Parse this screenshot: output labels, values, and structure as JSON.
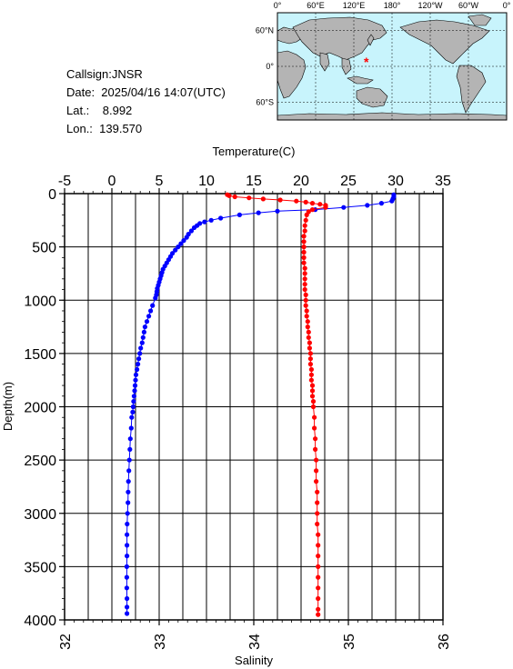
{
  "station": {
    "callsign_line": "Callsign:JNSR",
    "date_line": "Date:  2025/04/16 14:07(UTC)",
    "lat_line": "Lat.:    8.992",
    "lon_line": "Lon.:  139.570"
  },
  "map": {
    "top_labels": [
      "0°",
      "60°E",
      "120°E",
      "180°",
      "120°W",
      "60°W",
      "0°"
    ],
    "side_labels": [
      "60°N",
      "0°",
      "60°S"
    ],
    "ocean_color": "#c8f4fc",
    "land_color": "#b4b4b4",
    "marker_color": "#ff0000",
    "marker": {
      "lat": 8.992,
      "lon": 139.57
    }
  },
  "chart_data": {
    "type": "line",
    "ylabel": "Depth(m)",
    "y_ticks": [
      "0",
      "500",
      "1000",
      "1500",
      "2000",
      "2500",
      "3000",
      "3500",
      "4000"
    ],
    "ylim": [
      4000,
      0
    ],
    "x_top": {
      "label": "Temperature(C)",
      "ticks": [
        "-5",
        "0",
        "5",
        "10",
        "15",
        "20",
        "25",
        "30",
        "35"
      ],
      "lim": [
        -5,
        35
      ]
    },
    "x_bottom": {
      "label": "Salinity",
      "ticks": [
        "32",
        "33",
        "34",
        "35",
        "36"
      ],
      "lim": [
        32,
        36
      ]
    },
    "grid": true,
    "series": [
      {
        "axis": "temperature",
        "color": "#0000ff",
        "depth": [
          10,
          30,
          50,
          70,
          90,
          110,
          130,
          150,
          165,
          180,
          200,
          230,
          250,
          265,
          280,
          300,
          320,
          350,
          380,
          410,
          440,
          470,
          500,
          530,
          560,
          590,
          620,
          650,
          680,
          710,
          740,
          770,
          800,
          830,
          860,
          890,
          920,
          950,
          980,
          1050,
          1100,
          1150,
          1200,
          1250,
          1300,
          1350,
          1400,
          1450,
          1500,
          1550,
          1600,
          1650,
          1700,
          1750,
          1800,
          1850,
          1900,
          1950,
          2000,
          2050,
          2100,
          2200,
          2300,
          2400,
          2500,
          2600,
          2700,
          2800,
          2900,
          3000,
          3100,
          3200,
          3300,
          3400,
          3500,
          3600,
          3700,
          3800,
          3880,
          3940
        ],
        "values": [
          29.8,
          29.8,
          29.7,
          29.6,
          28.5,
          27.0,
          24.5,
          21.5,
          17.5,
          15.5,
          13.5,
          11.5,
          10.5,
          9.8,
          9.3,
          9.0,
          8.7,
          8.4,
          8.1,
          7.9,
          7.6,
          7.3,
          7.0,
          6.7,
          6.4,
          6.2,
          6.0,
          5.8,
          5.6,
          5.4,
          5.3,
          5.2,
          5.1,
          5.0,
          4.9,
          4.8,
          4.75,
          4.7,
          4.6,
          4.3,
          4.1,
          3.9,
          3.7,
          3.5,
          3.4,
          3.3,
          3.2,
          3.05,
          2.95,
          2.85,
          2.75,
          2.65,
          2.55,
          2.5,
          2.45,
          2.4,
          2.35,
          2.3,
          2.25,
          2.2,
          2.1,
          2.05,
          1.95,
          1.9,
          1.85,
          1.8,
          1.75,
          1.72,
          1.7,
          1.65,
          1.62,
          1.6,
          1.6,
          1.6,
          1.58,
          1.58,
          1.58,
          1.6,
          1.6,
          1.6
        ]
      },
      {
        "axis": "salinity",
        "color": "#ff0000",
        "depth": [
          10,
          20,
          30,
          40,
          50,
          60,
          70,
          80,
          90,
          100,
          110,
          120,
          130,
          150,
          170,
          200,
          250,
          300,
          350,
          400,
          450,
          500,
          550,
          600,
          650,
          700,
          750,
          800,
          850,
          900,
          950,
          1000,
          1050,
          1100,
          1150,
          1200,
          1250,
          1300,
          1350,
          1400,
          1450,
          1500,
          1550,
          1600,
          1650,
          1700,
          1750,
          1800,
          1850,
          1900,
          1950,
          2000,
          2100,
          2200,
          2300,
          2400,
          2500,
          2600,
          2700,
          2800,
          2900,
          3000,
          3100,
          3200,
          3300,
          3400,
          3500,
          3600,
          3700,
          3800,
          3900,
          3950
        ],
        "values": [
          33.72,
          33.74,
          33.8,
          33.95,
          34.1,
          34.28,
          34.45,
          34.55,
          34.62,
          34.7,
          34.76,
          34.76,
          34.76,
          34.62,
          34.58,
          34.56,
          34.55,
          34.54,
          34.54,
          34.53,
          34.53,
          34.53,
          34.53,
          34.53,
          34.53,
          34.54,
          34.54,
          34.54,
          34.54,
          34.54,
          34.55,
          34.55,
          34.55,
          34.56,
          34.56,
          34.57,
          34.57,
          34.58,
          34.58,
          34.59,
          34.59,
          34.6,
          34.6,
          34.6,
          34.61,
          34.61,
          34.61,
          34.62,
          34.62,
          34.62,
          34.63,
          34.63,
          34.64,
          34.64,
          34.65,
          34.65,
          34.66,
          34.66,
          34.66,
          34.67,
          34.67,
          34.67,
          34.67,
          34.68,
          34.68,
          34.68,
          34.68,
          34.68,
          34.68,
          34.68,
          34.68,
          34.68
        ]
      }
    ]
  }
}
